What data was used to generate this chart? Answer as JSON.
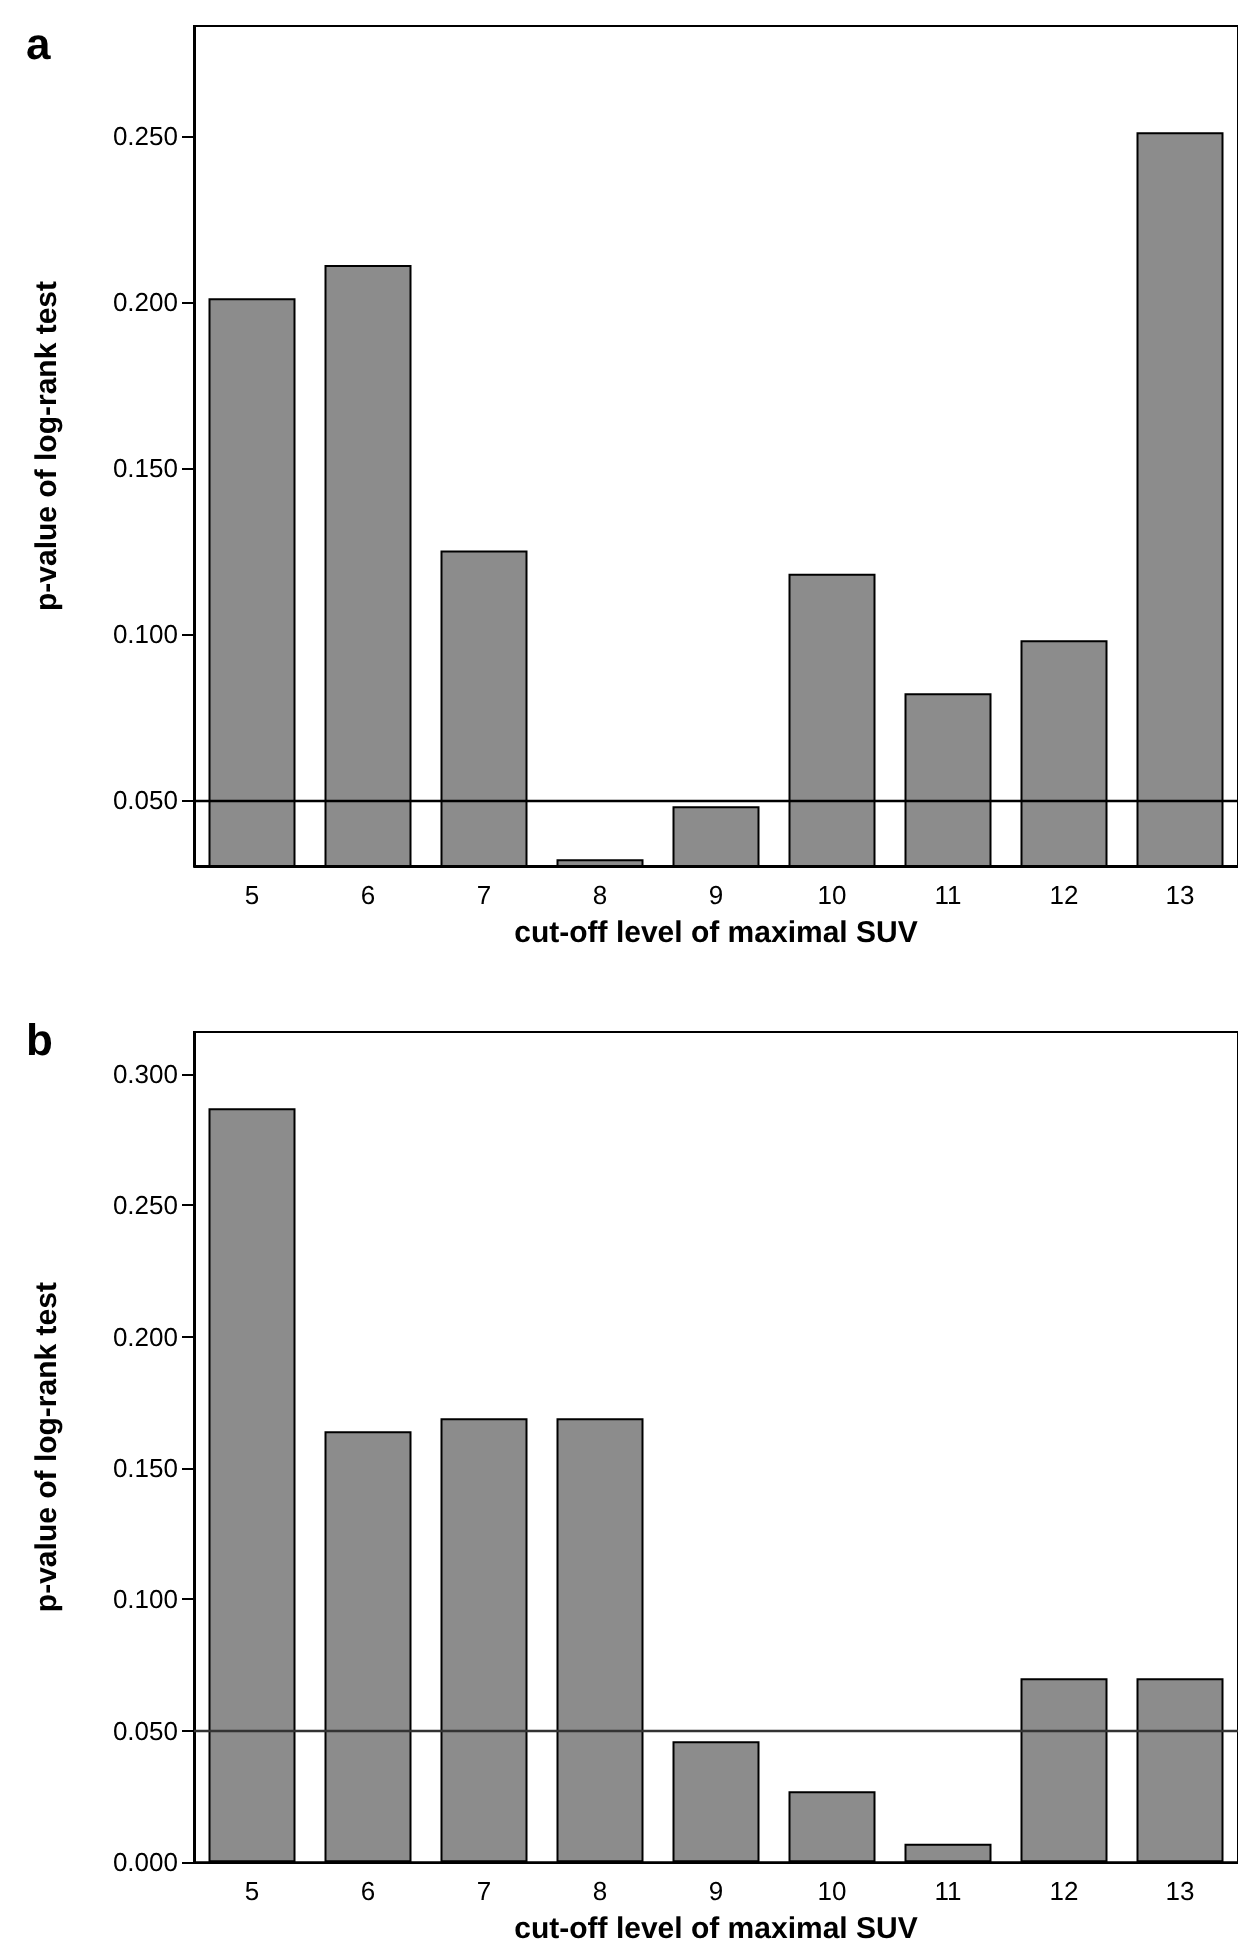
{
  "chart_data": [
    {
      "type": "bar",
      "title": "a",
      "xlabel": "cut-off level of maximal SUV",
      "ylabel": "p-value of log-rank test",
      "categories": [
        "5",
        "6",
        "7",
        "8",
        "9",
        "10",
        "11",
        "12",
        "13"
      ],
      "values": [
        0.201,
        0.211,
        0.125,
        0.032,
        0.048,
        0.118,
        0.082,
        0.098,
        0.251
      ],
      "color": "#8c8c8c",
      "ylim": [
        0.03,
        0.283
      ],
      "yticks": [
        {
          "value": 0.05,
          "label": "0.050"
        },
        {
          "value": 0.1,
          "label": "0.100"
        },
        {
          "value": 0.15,
          "label": "0.150"
        },
        {
          "value": 0.2,
          "label": "0.200"
        },
        {
          "value": 0.25,
          "label": "0.250"
        }
      ],
      "ref_lines": [
        {
          "axis": "y",
          "value": 0.05,
          "color": "#000000"
        }
      ],
      "grid": false
    },
    {
      "type": "bar",
      "title": "b",
      "xlabel": "cut-off level of maximal SUV",
      "ylabel": "p-value of log-rank test",
      "categories": [
        "5",
        "6",
        "7",
        "8",
        "9",
        "10",
        "11",
        "12",
        "13"
      ],
      "values": [
        0.287,
        0.164,
        0.169,
        0.169,
        0.046,
        0.027,
        0.007,
        0.07,
        0.07
      ],
      "color": "#8c8c8c",
      "ylim": [
        0,
        0.316
      ],
      "yticks": [
        {
          "value": 0,
          "label": "0.000"
        },
        {
          "value": 0.05,
          "label": "0.050"
        },
        {
          "value": 0.1,
          "label": "0.100"
        },
        {
          "value": 0.15,
          "label": "0.150"
        },
        {
          "value": 0.2,
          "label": "0.200"
        },
        {
          "value": 0.25,
          "label": "0.250"
        },
        {
          "value": 0.3,
          "label": "0.300"
        }
      ],
      "ref_lines": [
        {
          "axis": "y",
          "value": 0.05,
          "color": "#333333"
        }
      ],
      "grid": false
    }
  ]
}
